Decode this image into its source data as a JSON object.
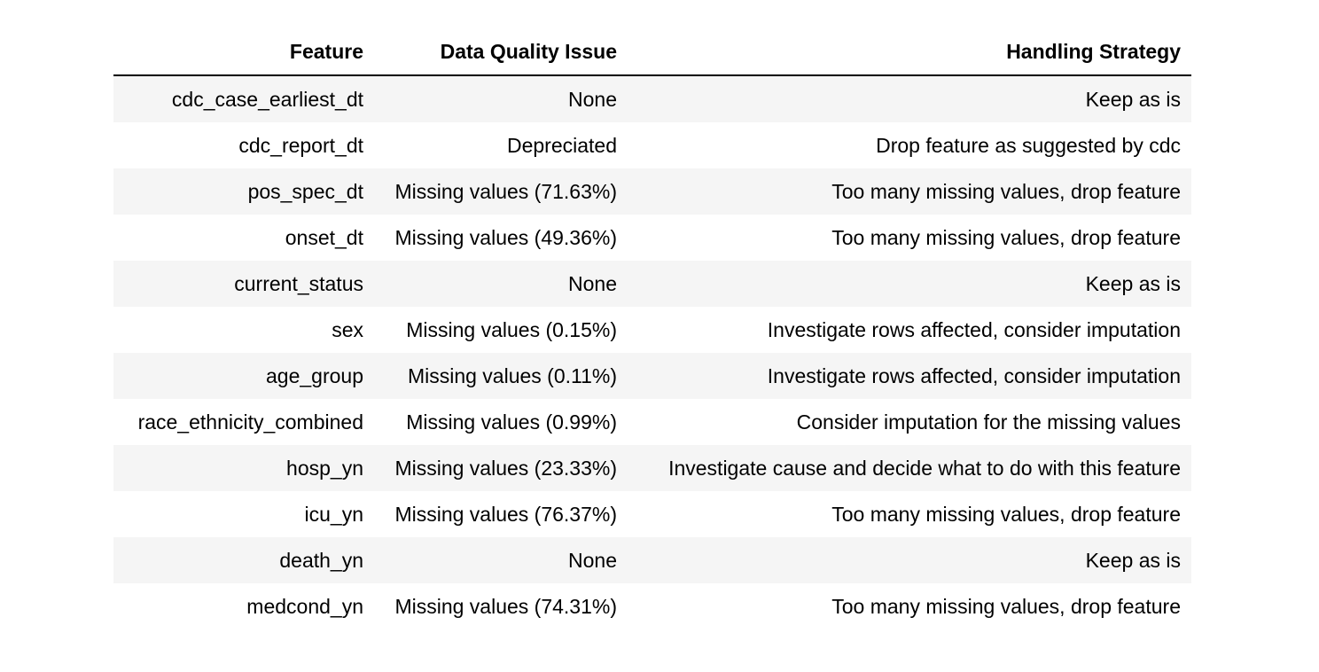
{
  "table": {
    "columns": [
      "Feature",
      "Data Quality Issue",
      "Handling Strategy"
    ],
    "rows": [
      [
        "cdc_case_earliest_dt",
        "None",
        "Keep as is"
      ],
      [
        "cdc_report_dt",
        "Depreciated",
        "Drop feature as suggested by cdc"
      ],
      [
        "pos_spec_dt",
        "Missing values (71.63%)",
        "Too many missing values, drop feature"
      ],
      [
        "onset_dt",
        "Missing values (49.36%)",
        "Too many missing values, drop feature"
      ],
      [
        "current_status",
        "None",
        "Keep as is"
      ],
      [
        "sex",
        "Missing values (0.15%)",
        "Investigate rows affected, consider imputation"
      ],
      [
        "age_group",
        "Missing values (0.11%)",
        "Investigate rows affected, consider imputation"
      ],
      [
        "race_ethnicity_combined",
        "Missing values (0.99%)",
        "Consider imputation for the missing values"
      ],
      [
        "hosp_yn",
        "Missing values (23.33%)",
        "Investigate cause and decide what to do with this feature"
      ],
      [
        "icu_yn",
        "Missing values (76.37%)",
        "Too many missing values, drop feature"
      ],
      [
        "death_yn",
        "None",
        "Keep as is"
      ],
      [
        "medcond_yn",
        "Missing values (74.31%)",
        "Too many missing values, drop feature"
      ]
    ]
  },
  "colors": {
    "row_stripe": "#f5f5f5",
    "header_rule": "#000000",
    "text": "#000000"
  }
}
